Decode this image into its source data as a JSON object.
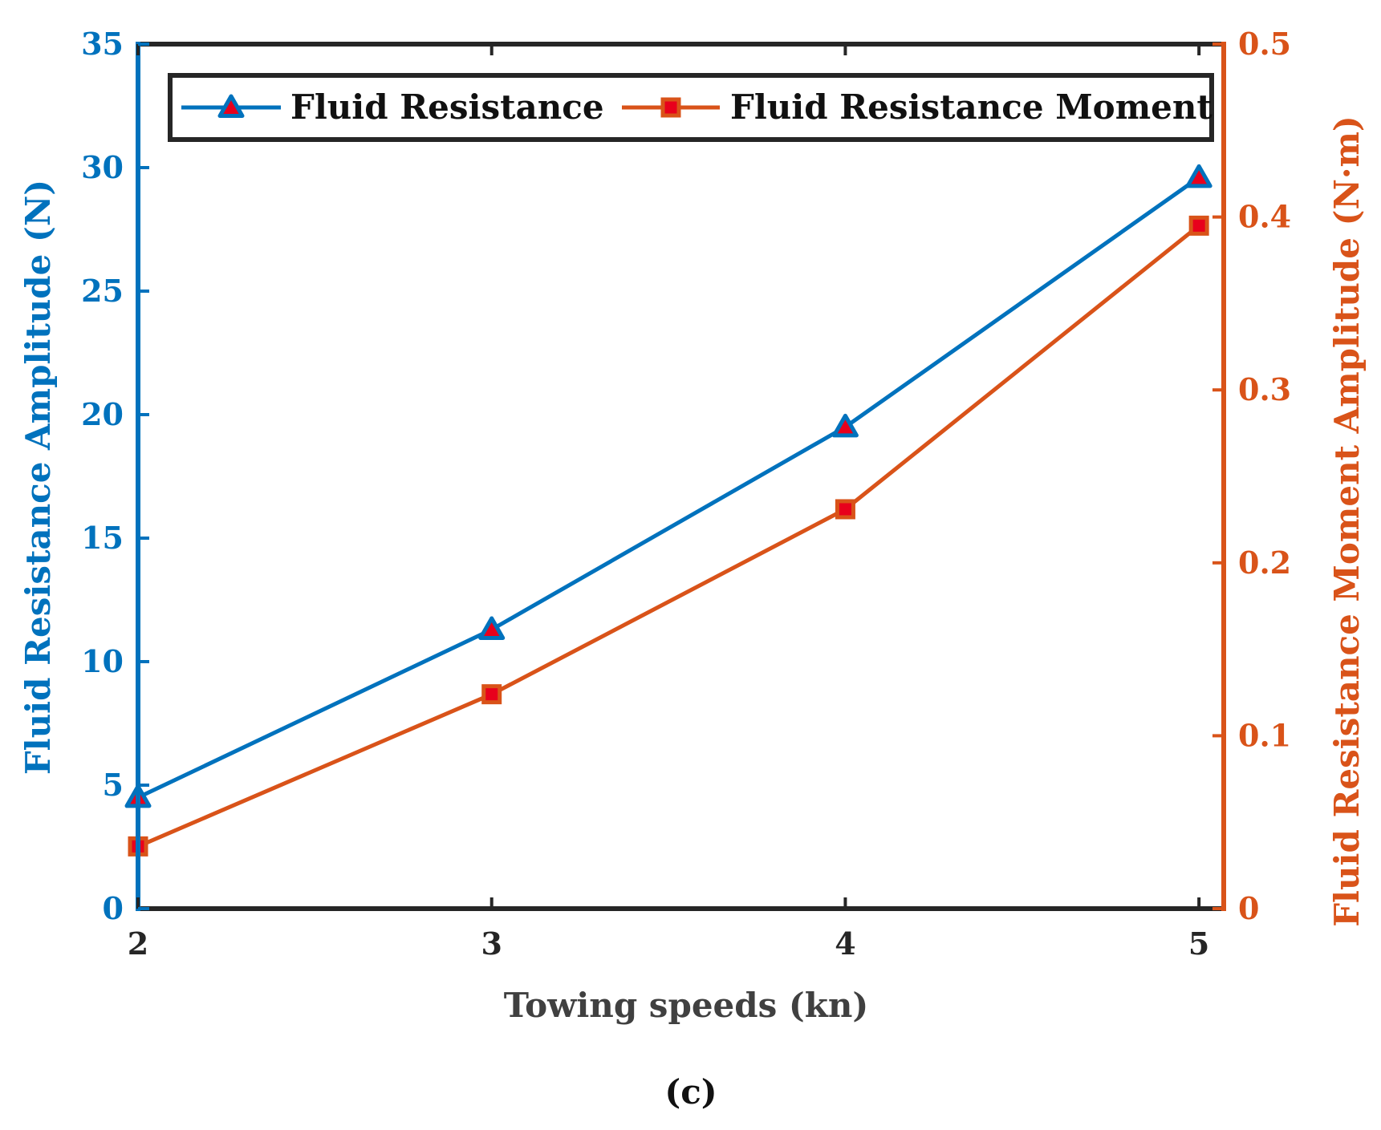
{
  "chart_data": {
    "type": "line",
    "x": [
      2,
      3,
      4,
      5
    ],
    "xlabel": "Towing speeds (kn)",
    "x_ticks": [
      "2",
      "3",
      "4",
      "5"
    ],
    "xlim": [
      2,
      5.07
    ],
    "series": [
      {
        "name": "Fluid Resistance",
        "axis": "left",
        "marker": "triangle",
        "color": "#0072BD",
        "values": [
          4.5,
          11.3,
          19.5,
          29.6
        ]
      },
      {
        "name": "Fluid Resistance Moment",
        "axis": "right",
        "marker": "square",
        "color": "#D95319",
        "values": [
          0.036,
          0.124,
          0.231,
          0.395
        ]
      }
    ],
    "y_left": {
      "label": "Fluid Resistance Amplitude (N)",
      "lim": [
        0,
        35
      ],
      "ticks": [
        0,
        5,
        10,
        15,
        20,
        25,
        30,
        35
      ],
      "tick_labels": [
        "0",
        "5",
        "10",
        "15",
        "20",
        "25",
        "30",
        "35"
      ],
      "color": "#0072BD"
    },
    "y_right": {
      "label": "Fluid Resistance Moment Amplitude (N·m)",
      "lim": [
        0,
        0.5
      ],
      "ticks": [
        0,
        0.1,
        0.2,
        0.3,
        0.4,
        0.5
      ],
      "tick_labels": [
        "0",
        "0.1",
        "0.2",
        "0.3",
        "0.4",
        "0.5"
      ],
      "color": "#D95319"
    },
    "legend": {
      "location": "top",
      "entries": [
        "Fluid Resistance",
        "Fluid Resistance Moment"
      ]
    },
    "marker_center_color": "#E8001C",
    "grid": false
  },
  "caption": {
    "open": "(",
    "letter": "c",
    "close": ")"
  }
}
